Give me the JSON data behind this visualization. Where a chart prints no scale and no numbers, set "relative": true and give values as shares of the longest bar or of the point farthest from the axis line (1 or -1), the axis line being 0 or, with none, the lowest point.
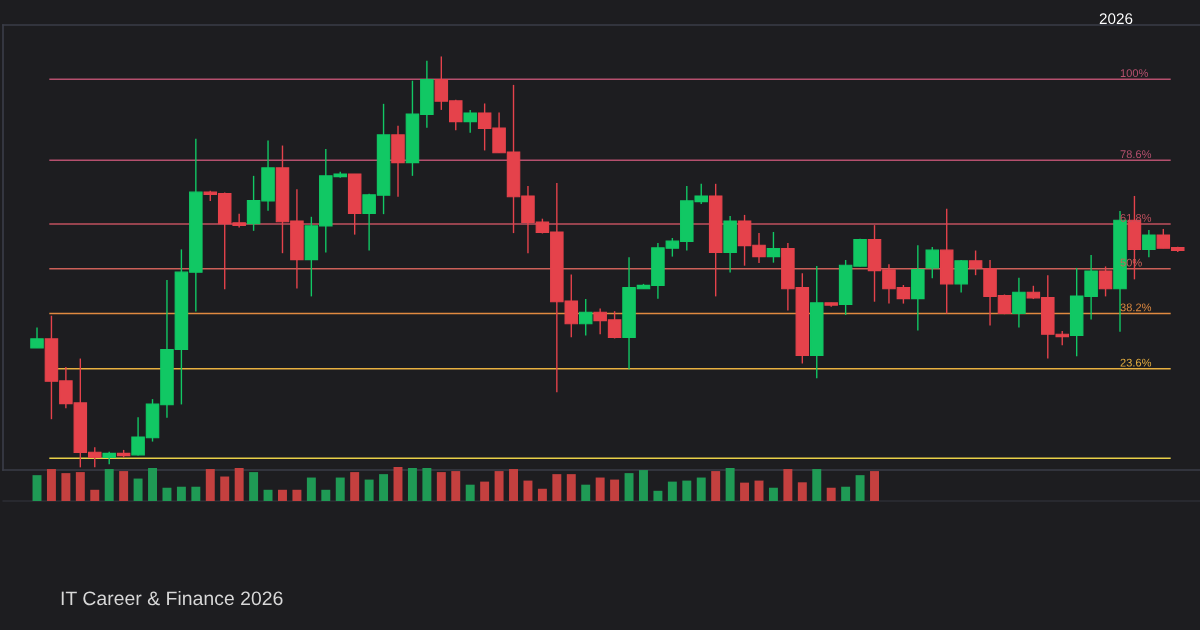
{
  "chart_data": [
    {
      "type": "candlestick",
      "grid": false,
      "ylim": [
        -3.1,
        114.3
      ],
      "categories": [
        null,
        null,
        null,
        null,
        null,
        null,
        null,
        null,
        null,
        null,
        null,
        null,
        null,
        null,
        null,
        null,
        null,
        null,
        null,
        null,
        null,
        null,
        null,
        null,
        null,
        null,
        null,
        null,
        null,
        null,
        null,
        null,
        null,
        null,
        null,
        null,
        null,
        null,
        null,
        null,
        null,
        null,
        null,
        null,
        null,
        null,
        null,
        null,
        null,
        null,
        null,
        null,
        null,
        null,
        null,
        null,
        null,
        null,
        null,
        null,
        null,
        null,
        null,
        null,
        null,
        null,
        null,
        null,
        null,
        null,
        null,
        null,
        null,
        null,
        null,
        null,
        null,
        null,
        null,
        null
      ],
      "ohlc": [
        [
          29.1,
          34.5,
          29.1,
          31.5
        ],
        [
          31.5,
          37.6,
          10.3,
          20.3
        ],
        [
          20.4,
          24.1,
          13.2,
          14.4
        ],
        [
          14.6,
          26.3,
          -2.4,
          1.5
        ],
        [
          1.6,
          2.9,
          -2.4,
          0.2
        ],
        [
          0.2,
          1.7,
          -1.6,
          1.3
        ],
        [
          1.3,
          2.2,
          0.2,
          0.7
        ],
        [
          0.9,
          10.8,
          0.7,
          5.6
        ],
        [
          5.4,
          15.6,
          4.4,
          14.3
        ],
        [
          14.1,
          47.0,
          10.7,
          28.7
        ],
        [
          28.7,
          55.1,
          14.2,
          49.1
        ],
        [
          49.1,
          84.3,
          38.7,
          70.2
        ],
        [
          70.2,
          70.6,
          67.9,
          69.6
        ],
        [
          69.8,
          70.1,
          44.6,
          61.9
        ],
        [
          62.1,
          64.5,
          60.9,
          61.4
        ],
        [
          61.9,
          74.5,
          60.0,
          68.0
        ],
        [
          67.9,
          83.8,
          65.3,
          76.6
        ],
        [
          76.6,
          82.5,
          54.1,
          62.4
        ],
        [
          62.6,
          71.0,
          44.8,
          52.4
        ],
        [
          52.4,
          63.7,
          42.7,
          61.3
        ],
        [
          61.3,
          81.6,
          54.3,
          74.5
        ],
        [
          74.3,
          75.6,
          74.0,
          75.0
        ],
        [
          75.0,
          75.0,
          59.0,
          64.6
        ],
        [
          64.6,
          69.8,
          54.8,
          69.5
        ],
        [
          69.4,
          93.5,
          64.4,
          85.3
        ],
        [
          85.3,
          87.7,
          69.0,
          78.0
        ],
        [
          78.0,
          99.6,
          74.5,
          90.8
        ],
        [
          90.7,
          104.9,
          87.2,
          99.9
        ],
        [
          99.9,
          106.0,
          91.9,
          94.2
        ],
        [
          94.3,
          94.6,
          86.5,
          88.8
        ],
        [
          88.8,
          91.9,
          85.9,
          91.1
        ],
        [
          91.1,
          93.6,
          81.2,
          87.0
        ],
        [
          87.1,
          91.2,
          80.5,
          80.6
        ],
        [
          80.8,
          98.5,
          59.4,
          69.0
        ],
        [
          69.2,
          71.8,
          54.1,
          62.2
        ],
        [
          62.3,
          63.2,
          59.3,
          59.6
        ],
        [
          59.7,
          72.6,
          17.4,
          41.3
        ],
        [
          41.5,
          48.5,
          31.9,
          35.5
        ],
        [
          35.5,
          42.0,
          32.4,
          38.5
        ],
        [
          38.5,
          39.5,
          32.7,
          36.3
        ],
        [
          36.5,
          38.8,
          31.6,
          31.9
        ],
        [
          31.9,
          53.0,
          23.5,
          45.0
        ],
        [
          44.7,
          46.0,
          44.7,
          45.6
        ],
        [
          45.6,
          56.8,
          42.1,
          55.5
        ],
        [
          55.4,
          58.1,
          53.2,
          57.3
        ],
        [
          57.2,
          71.8,
          54.8,
          67.9
        ],
        [
          67.7,
          72.4,
          67.1,
          69.2
        ],
        [
          69.2,
          72.4,
          42.7,
          54.3
        ],
        [
          54.3,
          63.9,
          49.0,
          62.6
        ],
        [
          62.6,
          64.2,
          50.8,
          56.1
        ],
        [
          56.2,
          59.4,
          51.5,
          53.2
        ],
        [
          53.2,
          59.7,
          51.6,
          55.3
        ],
        [
          55.3,
          56.8,
          39.0,
          44.7
        ],
        [
          45.0,
          48.8,
          25.0,
          27.1
        ],
        [
          27.1,
          50.7,
          21.1,
          41.0
        ],
        [
          41.0,
          41.0,
          40.0,
          40.4
        ],
        [
          40.6,
          52.3,
          37.8,
          50.9
        ],
        [
          50.7,
          57.9,
          50.6,
          57.7
        ],
        [
          57.7,
          61.5,
          41.3,
          49.5
        ],
        [
          49.7,
          51.2,
          40.8,
          44.7
        ],
        [
          45.0,
          45.7,
          40.8,
          42.1
        ],
        [
          42.1,
          56.2,
          33.7,
          49.8
        ],
        [
          50.2,
          55.7,
          47.5,
          54.9
        ],
        [
          54.9,
          65.8,
          38.2,
          46.0
        ],
        [
          46.0,
          52.3,
          43.7,
          52.1
        ],
        [
          52.1,
          54.8,
          48.3,
          50.3
        ],
        [
          50.0,
          52.3,
          35.0,
          42.7
        ],
        [
          42.9,
          43.2,
          38.0,
          38.2
        ],
        [
          38.2,
          47.6,
          34.5,
          43.8
        ],
        [
          43.8,
          45.5,
          42.0,
          42.3
        ],
        [
          42.4,
          48.3,
          26.3,
          32.7
        ],
        [
          32.7,
          33.6,
          29.8,
          32.1
        ],
        [
          32.4,
          50.2,
          26.9,
          42.8
        ],
        [
          42.7,
          53.6,
          36.6,
          49.4
        ],
        [
          49.4,
          50.6,
          42.7,
          44.7
        ],
        [
          44.7,
          65.2,
          33.4,
          62.8
        ],
        [
          62.8,
          69.2,
          47.2,
          55.1
        ],
        [
          55.1,
          60.2,
          53.0,
          58.9
        ],
        [
          58.9,
          60.5,
          55.4,
          55.4
        ],
        [
          55.6,
          55.8,
          54.4,
          54.8
        ]
      ],
      "yticks": [
        {
          "value": 100,
          "label": "100%"
        },
        {
          "value": 78.6,
          "label": "78.6%"
        },
        {
          "value": 61.8,
          "label": "61.8%"
        },
        {
          "value": 50,
          "label": "50%"
        },
        {
          "value": 38.2,
          "label": "38.2%"
        },
        {
          "value": 23.6,
          "label": "23.6%"
        }
      ],
      "colors": [
        "#11c864",
        "#e5424b",
        "#e5424b",
        "#e5424b",
        "#e5424b",
        "#11c864",
        "#e5424b",
        "#11c864",
        "#11c864",
        "#11c864",
        "#11c864",
        "#11c864",
        "#e5424b",
        "#e5424b",
        "#e5424b",
        "#11c864",
        "#11c864",
        "#e5424b",
        "#e5424b",
        "#11c864",
        "#11c864",
        "#11c864",
        "#e5424b",
        "#11c864",
        "#11c864",
        "#e5424b",
        "#11c864",
        "#11c864",
        "#e5424b",
        "#e5424b",
        "#11c864",
        "#e5424b",
        "#e5424b",
        "#e5424b",
        "#e5424b",
        "#e5424b",
        "#e5424b",
        "#e5424b",
        "#11c864",
        "#e5424b",
        "#e5424b",
        "#11c864",
        "#11c864",
        "#11c864",
        "#11c864",
        "#11c864",
        "#11c864",
        "#e5424b",
        "#11c864",
        "#e5424b",
        "#e5424b",
        "#11c864",
        "#e5424b",
        "#e5424b",
        "#11c864",
        "#e5424b",
        "#11c864",
        "#11c864",
        "#e5424b",
        "#e5424b",
        "#e5424b",
        "#11c864",
        "#11c864",
        "#e5424b",
        "#11c864",
        "#e5424b",
        "#e5424b",
        "#e5424b",
        "#11c864",
        "#e5424b",
        "#e5424b",
        "#e5424b",
        "#11c864",
        "#11c864",
        "#e5424b",
        "#11c864",
        "#e5424b",
        "#11c864",
        "#e5424b",
        "#e5424b"
      ],
      "ref_lines": [
        {
          "axis": "y",
          "value": 100,
          "label": null,
          "color": "#b5506e"
        },
        {
          "axis": "y",
          "value": 78.6,
          "label": null,
          "color": "#b5506e"
        },
        {
          "axis": "y",
          "value": 61.8,
          "label": null,
          "color": "#c0505e"
        },
        {
          "axis": "y",
          "value": 50,
          "label": null,
          "color": "#cc6058"
        },
        {
          "axis": "y",
          "value": 38.2,
          "label": null,
          "color": "#e08a40"
        },
        {
          "axis": "y",
          "value": 23.6,
          "label": null,
          "color": "#e8b040"
        },
        {
          "axis": "y",
          "value": 0,
          "label": null,
          "color": "#e8d048"
        }
      ],
      "annotations": [
        "2026",
        "IT Career & Finance 2026"
      ]
    },
    {
      "type": "bar",
      "relative": true,
      "categories": [
        null,
        null,
        null,
        null,
        null,
        null,
        null,
        null,
        null,
        null,
        null,
        null,
        null,
        null,
        null,
        null,
        null,
        null,
        null,
        null,
        null,
        null,
        null,
        null,
        null,
        null,
        null,
        null,
        null,
        null,
        null,
        null,
        null,
        null,
        null,
        null,
        null,
        null,
        null,
        null,
        null,
        null,
        null,
        null,
        null,
        null,
        null,
        null,
        null,
        null,
        null,
        null,
        null,
        null,
        null,
        null,
        null,
        null,
        null
      ],
      "values": [
        0.76,
        0.94,
        0.82,
        0.85,
        0.33,
        0.94,
        0.88,
        0.66,
        0.97,
        0.39,
        0.42,
        0.42,
        0.94,
        0.72,
        0.97,
        0.85,
        0.33,
        0.33,
        0.33,
        0.69,
        0.33,
        0.69,
        0.85,
        0.63,
        0.79,
        1,
        0.97,
        0.97,
        0.85,
        0.88,
        0.48,
        0.57,
        0.88,
        0.94,
        0.6,
        0.36,
        0.79,
        0.79,
        0.48,
        0.69,
        0.63,
        0.82,
        0.91,
        0.3,
        0.57,
        0.6,
        0.69,
        0.88,
        0.97,
        0.54,
        0.6,
        0.39,
        0.94,
        0.55,
        0.94,
        0.39,
        0.42,
        0.76,
        0.88
      ],
      "colors": [
        "#1f9a55",
        "#c4403f",
        "#c4403f",
        "#c4403f",
        "#c4403f",
        "#1f9a55",
        "#c4403f",
        "#1f9a55",
        "#1f9a55",
        "#1f9a55",
        "#1f9a55",
        "#1f9a55",
        "#c4403f",
        "#c4403f",
        "#c4403f",
        "#1f9a55",
        "#1f9a55",
        "#c4403f",
        "#c4403f",
        "#1f9a55",
        "#1f9a55",
        "#1f9a55",
        "#c4403f",
        "#1f9a55",
        "#1f9a55",
        "#c4403f",
        "#1f9a55",
        "#1f9a55",
        "#c4403f",
        "#c4403f",
        "#1f9a55",
        "#c4403f",
        "#c4403f",
        "#c4403f",
        "#c4403f",
        "#c4403f",
        "#c4403f",
        "#c4403f",
        "#1f9a55",
        "#c4403f",
        "#c4403f",
        "#1f9a55",
        "#1f9a55",
        "#1f9a55",
        "#1f9a55",
        "#1f9a55",
        "#1f9a55",
        "#c4403f",
        "#1f9a55",
        "#c4403f",
        "#c4403f",
        "#1f9a55",
        "#c4403f",
        "#c4403f",
        "#1f9a55",
        "#c4403f",
        "#1f9a55",
        "#1f9a55",
        "#c4403f"
      ]
    }
  ]
}
